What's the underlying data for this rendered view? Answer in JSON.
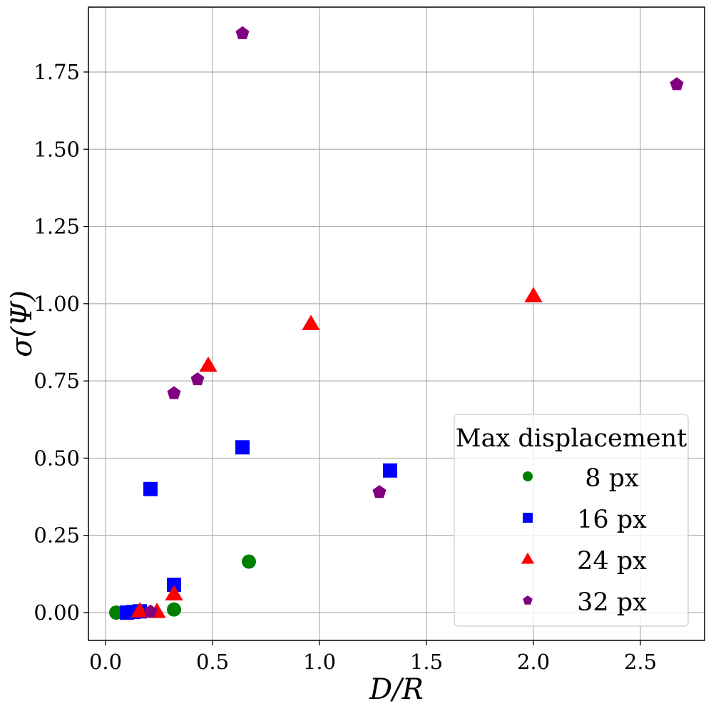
{
  "chart_data": {
    "type": "scatter",
    "title": "",
    "xlabel": "D/R",
    "ylabel": "σ(Ψ)",
    "xlim": [
      -0.08,
      2.8
    ],
    "ylim": [
      -0.09,
      1.96
    ],
    "xticks": [
      0.0,
      0.5,
      1.0,
      1.5,
      2.0,
      2.5
    ],
    "xtick_labels": [
      "0.0",
      "0.5",
      "1.0",
      "1.5",
      "2.0",
      "2.5"
    ],
    "yticks": [
      0.0,
      0.25,
      0.5,
      0.75,
      1.0,
      1.25,
      1.5,
      1.75
    ],
    "ytick_labels": [
      "0.00",
      "0.25",
      "0.50",
      "0.75",
      "1.00",
      "1.25",
      "1.50",
      "1.75"
    ],
    "grid": true,
    "legend": {
      "title": "Max displacement",
      "position": "lower-right"
    },
    "series": [
      {
        "name": "8 px",
        "marker": "circle",
        "color": "#008000",
        "x": [
          0.05,
          0.32,
          0.67
        ],
        "y": [
          0.0,
          0.01,
          0.165
        ]
      },
      {
        "name": "16 px",
        "marker": "square",
        "color": "#0000ff",
        "x": [
          0.1,
          0.13,
          0.16,
          0.21,
          0.32,
          0.64,
          1.33
        ],
        "y": [
          0.0,
          0.002,
          0.004,
          0.4,
          0.09,
          0.535,
          0.46
        ]
      },
      {
        "name": "24 px",
        "marker": "triangle",
        "color": "#ff0000",
        "x": [
          0.16,
          0.24,
          0.32,
          0.48,
          0.96,
          2.0
        ],
        "y": [
          0.005,
          0.003,
          0.06,
          0.8,
          0.935,
          1.025
        ]
      },
      {
        "name": "32 px",
        "marker": "pentagon",
        "color": "#800080",
        "x": [
          0.21,
          0.32,
          0.43,
          0.64,
          1.28,
          2.67
        ],
        "y": [
          0.003,
          0.71,
          0.755,
          1.875,
          0.39,
          1.71
        ]
      }
    ]
  }
}
